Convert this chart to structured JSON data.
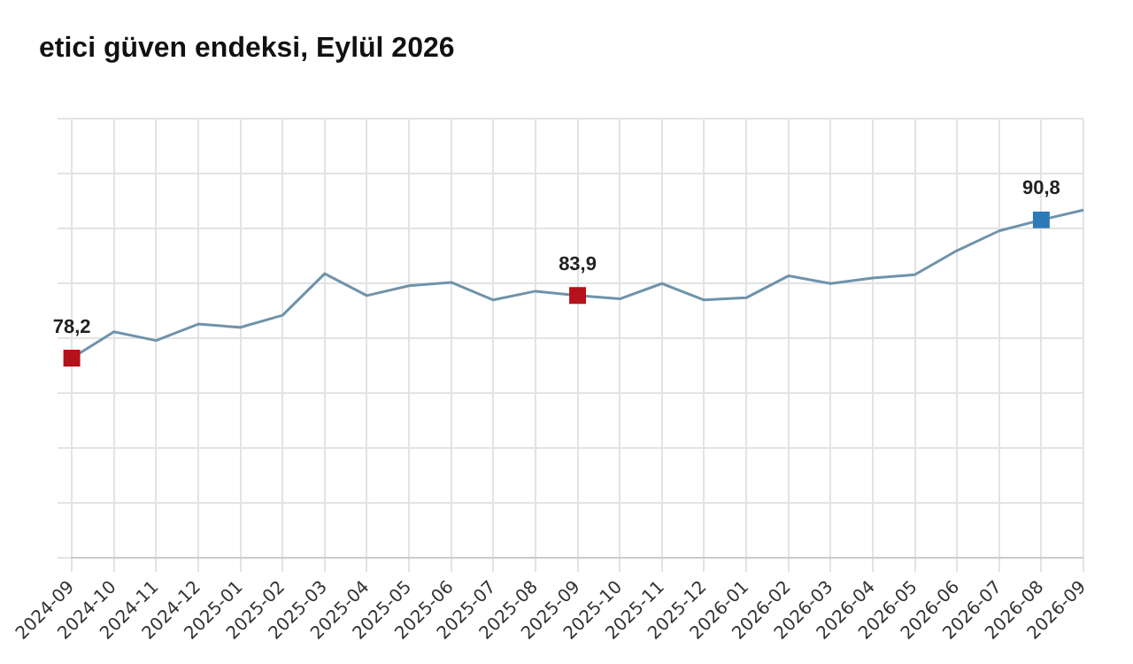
{
  "chart_data": {
    "type": "line",
    "title": "etici güven endeksi, Eylül 2026",
    "categories": [
      "2024-09",
      "2024-10",
      "2024-11",
      "2024-12",
      "2025-01",
      "2025-02",
      "2025-03",
      "2025-04",
      "2025-05",
      "2025-06",
      "2025-07",
      "2025-08",
      "2025-09",
      "2025-10",
      "2025-11",
      "2025-12",
      "2026-01",
      "2026-02",
      "2026-03",
      "2026-04",
      "2026-05",
      "2026-06",
      "2026-07",
      "2026-08",
      "2026-09"
    ],
    "series": [
      {
        "color": "#6f93ab",
        "marker": "none",
        "values": [
          78.2,
          80.6,
          79.8,
          81.3,
          81.0,
          82.1,
          85.9,
          83.9,
          84.8,
          85.1,
          83.5,
          84.3,
          83.9,
          83.6,
          85.0,
          83.5,
          83.7,
          85.7,
          85.0,
          85.5,
          85.8,
          88.0,
          89.8,
          90.8,
          91.7
        ]
      },
      {
        "type": "scatter",
        "marker": "square",
        "colors": [
          "#b5121b",
          null,
          null,
          null,
          null,
          null,
          null,
          null,
          null,
          null,
          null,
          null,
          "#b5121b",
          null,
          null,
          null,
          null,
          null,
          null,
          null,
          null,
          null,
          null,
          "#2e7ab8",
          null
        ],
        "values": [
          78.2,
          null,
          null,
          null,
          null,
          null,
          null,
          null,
          null,
          null,
          null,
          null,
          83.9,
          null,
          null,
          null,
          null,
          null,
          null,
          null,
          null,
          null,
          null,
          90.8,
          null
        ],
        "value_labels": [
          "78,2",
          null,
          null,
          null,
          null,
          null,
          null,
          null,
          null,
          null,
          null,
          null,
          "83,9",
          null,
          null,
          null,
          null,
          null,
          null,
          null,
          null,
          null,
          null,
          "90,8",
          null
        ]
      }
    ],
    "ylim": [
      60,
      100
    ],
    "yticks": [
      {
        "value": 60,
        "label": null
      },
      {
        "value": 65,
        "label": null
      },
      {
        "value": 70,
        "label": null
      },
      {
        "value": 75,
        "label": null
      },
      {
        "value": 80,
        "label": null
      },
      {
        "value": 85,
        "label": null
      },
      {
        "value": 90,
        "label": null
      },
      {
        "value": 95,
        "label": null
      },
      {
        "value": 100,
        "label": null
      }
    ],
    "tick_labels": "x",
    "grid": true,
    "legend": false
  }
}
